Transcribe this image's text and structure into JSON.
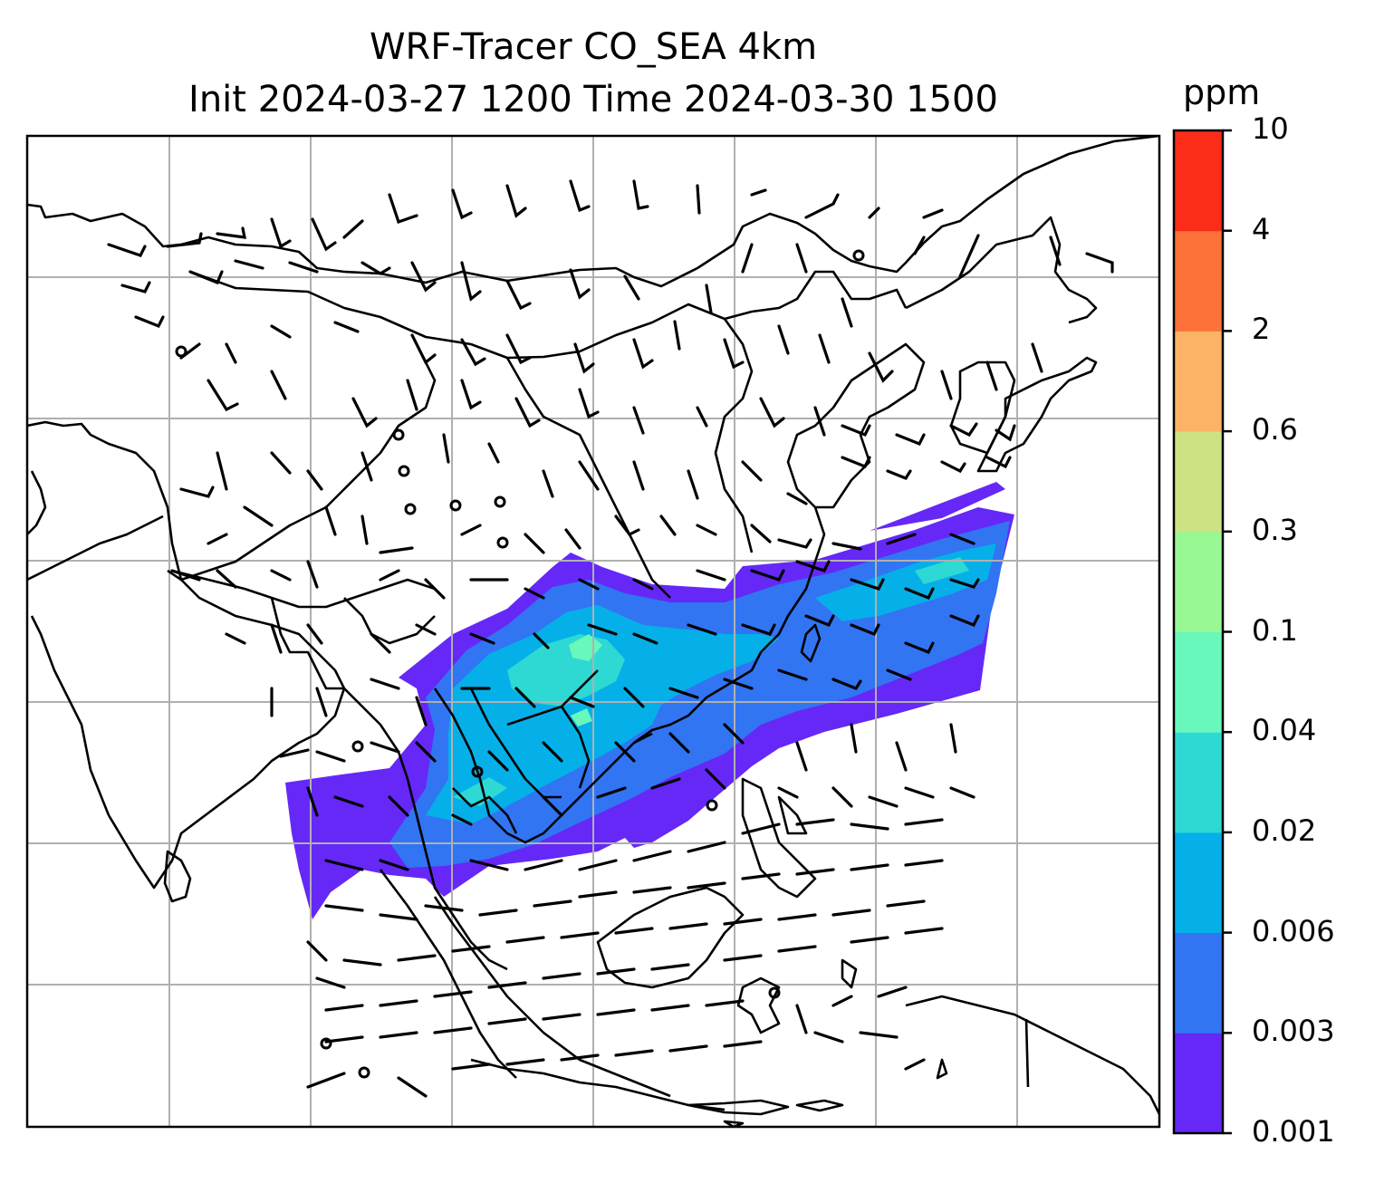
{
  "title": {
    "line1": "WRF-Tracer CO_SEA 4km",
    "line2": "Init 2024-03-27 1200 Time 2024-03-30 1500"
  },
  "colorbar": {
    "unit": "ppm",
    "levels": [
      "0.001",
      "0.003",
      "0.006",
      "0.02",
      "0.04",
      "0.1",
      "0.3",
      "0.6",
      "2",
      "4",
      "10"
    ],
    "colors": [
      "#6528f7",
      "#3175f3",
      "#05b0e8",
      "#2ed9d4",
      "#68f8bc",
      "#98f893",
      "#cde282",
      "#fdb366",
      "#fd7239",
      "#fb2d18"
    ]
  },
  "map": {
    "gridlines": true,
    "field": "CO tracer concentration",
    "overlay": "wind barbs"
  }
}
